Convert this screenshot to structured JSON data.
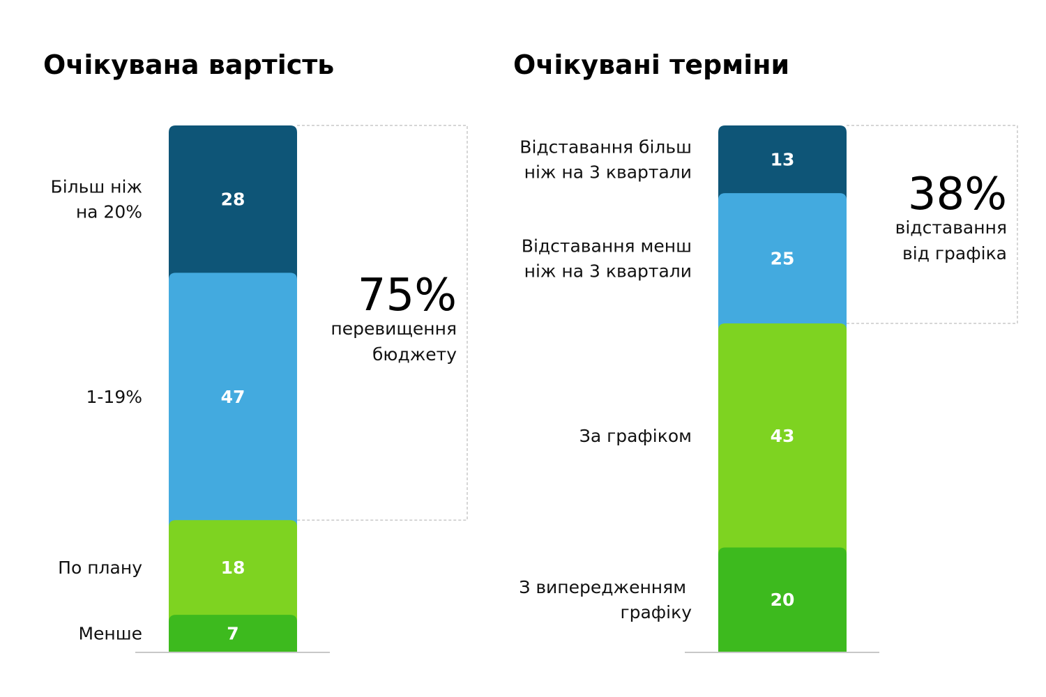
{
  "chart_data": [
    {
      "type": "bar",
      "stacked": true,
      "title": "Очікувана вартість",
      "categories": [
        [
          "Більш ніж",
          "на 20%"
        ],
        [
          "1-19%"
        ],
        [
          "По плану"
        ],
        [
          "Менше"
        ]
      ],
      "values": [
        28,
        47,
        18,
        7
      ],
      "colors": [
        "#0e5577",
        "#43aadf",
        "#7ed321",
        "#3dba1e"
      ],
      "annotation": {
        "value": "75%",
        "lines": [
          "перевищення",
          "бюджету"
        ],
        "covers": 2
      }
    },
    {
      "type": "bar",
      "stacked": true,
      "title": "Очікувані терміни",
      "categories": [
        [
          "Відставання більш",
          "ніж на 3 квартали"
        ],
        [
          "Відставання менш",
          "ніж на 3 квартали"
        ],
        [
          "За графіком"
        ],
        [
          "З випередженням ",
          "графіку"
        ]
      ],
      "values": [
        13,
        25,
        43,
        20
      ],
      "colors": [
        "#0e5577",
        "#43aadf",
        "#7ed321",
        "#3dba1e"
      ],
      "annotation": {
        "value": "38%",
        "lines": [
          "відставання",
          "від графіка"
        ],
        "covers": 2
      }
    }
  ]
}
